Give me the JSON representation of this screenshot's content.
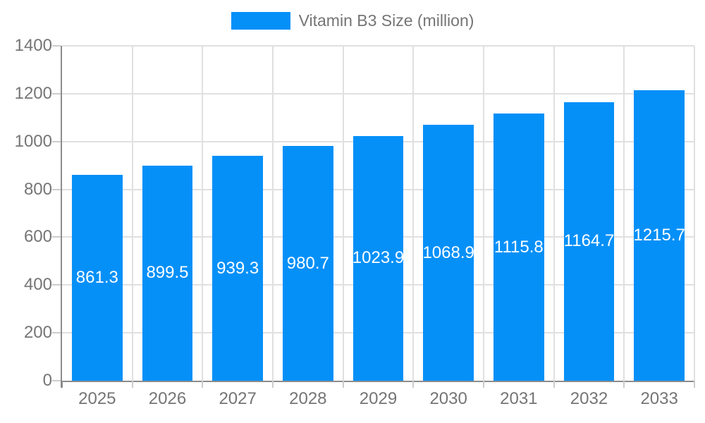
{
  "legend": {
    "label": "Vitamin B3 Size (million)"
  },
  "colors": {
    "bar": "#0590F8",
    "grid": "#e0e0e0",
    "axis": "#8c8c8c",
    "tick": "#cccccc",
    "axis_text": "#757575",
    "bar_label_text": "#ffffff",
    "background": "#ffffff"
  },
  "chart_data": {
    "type": "bar",
    "title": "Vitamin B3 Size (million)",
    "categories": [
      "2025",
      "2026",
      "2027",
      "2028",
      "2029",
      "2030",
      "2031",
      "2032",
      "2033"
    ],
    "series": [
      {
        "name": "Vitamin B3 Size (million)",
        "values": [
          861.3,
          899.5,
          939.3,
          980.7,
          1023.9,
          1068.9,
          1115.8,
          1164.7,
          1215.7
        ]
      }
    ],
    "xlabel": "",
    "ylabel": "",
    "ylim": [
      0,
      1400
    ],
    "yticks": [
      0,
      200,
      400,
      600,
      800,
      1000,
      1200,
      1400
    ],
    "grid": true,
    "legend_position": "top",
    "bar_labels_shown": true,
    "bar_label_position": "center"
  }
}
